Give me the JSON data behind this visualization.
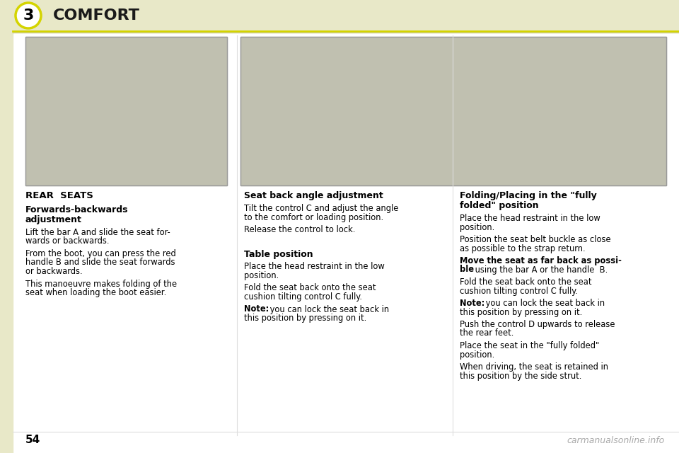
{
  "bg_color": "#ffffff",
  "header_bg": "#e8e8c8",
  "header_text": "COMFORT",
  "header_text_color": "#1a1a1a",
  "chapter_number": "3",
  "page_number": "54",
  "watermark": "carmanualsonline.info",
  "left_section_header": "REAR  SEATS",
  "col1_title1": "Forwards-backwards",
  "col1_title2": "adjustment",
  "col1_para1a": "Lift the bar A and slide the seat for-",
  "col1_para1b": "wards or backwards.",
  "col1_para2a": "From the boot, you can press the red",
  "col1_para2b": "handle B and slide the seat forwards",
  "col1_para2c": "or backwards.",
  "col1_para3a": "This manoeuvre makes folding of the",
  "col1_para3b": "seat when loading the boot easier.",
  "col2_title": "Seat back angle adjustment",
  "col2_para1a": "Tilt the control C and adjust the angle",
  "col2_para1b": "to the comfort or loading position.",
  "col2_para2": "Release the control to lock.",
  "col2_title2": "Table position",
  "col2_para3a": "Place the head restraint in the low",
  "col2_para3b": "position.",
  "col2_para4a": "Fold the seat back onto the seat",
  "col2_para4b": "cushion tilting control C fully.",
  "col2_note_bold": "Note:",
  "col2_note_norm1": " you can lock the seat back in",
  "col2_note_norm2": "this position by pressing on it.",
  "col3_title1": "Folding/Placing in the \"fully",
  "col3_title2": "folded\" position",
  "col3_para1a": "Place the head restraint in the low",
  "col3_para1b": "position.",
  "col3_para2a": "Position the seat belt buckle as close",
  "col3_para2b": "as possible to the strap return.",
  "col3_para3_bold1": "Move the seat as far back as possi-",
  "col3_para3_bold2": "ble",
  "col3_para3_norm": " using the bar A or the handle  B.",
  "col3_para4a": "Fold the seat back onto the seat",
  "col3_para4b": "cushion tilting control C fully.",
  "col3_note_bold": "Note:",
  "col3_note_norm1": " you can lock the seat back in",
  "col3_note_norm2": "this position by pressing on it.",
  "col3_para5a": "Push the control D upwards to release",
  "col3_para5b": "the rear feet.",
  "col3_para6a": "Place the seat in the \"fully folded\"",
  "col3_para6b": "position.",
  "col3_para7a": "When driving, the seat is retained in",
  "col3_para7b": "this position by the side strut.",
  "accent_color": "#d4d400",
  "divider_color": "#cccc88",
  "left_sidebar_color": "#e8e8c8"
}
